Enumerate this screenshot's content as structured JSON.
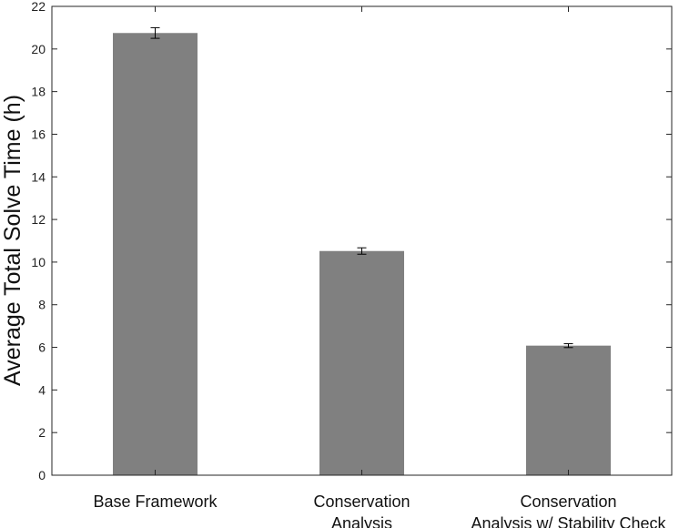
{
  "chart_data": {
    "type": "bar",
    "categories": [
      [
        "Base Framework"
      ],
      [
        "Conservation",
        "Analysis"
      ],
      [
        "Conservation",
        "Analysis w/ Stability Check"
      ]
    ],
    "values": [
      20.75,
      10.52,
      6.08
    ],
    "errors": [
      0.25,
      0.15,
      0.09
    ],
    "xlabel": "",
    "ylabel": "Average Total Solve Time (h)",
    "ylim": [
      0,
      22
    ],
    "yticks": [
      0,
      2,
      4,
      6,
      8,
      10,
      12,
      14,
      16,
      18,
      20,
      22
    ],
    "grid": false,
    "legend": "none",
    "colors": {
      "bar": "#808080",
      "axis": "#262626",
      "error_bar": "#000000"
    }
  }
}
